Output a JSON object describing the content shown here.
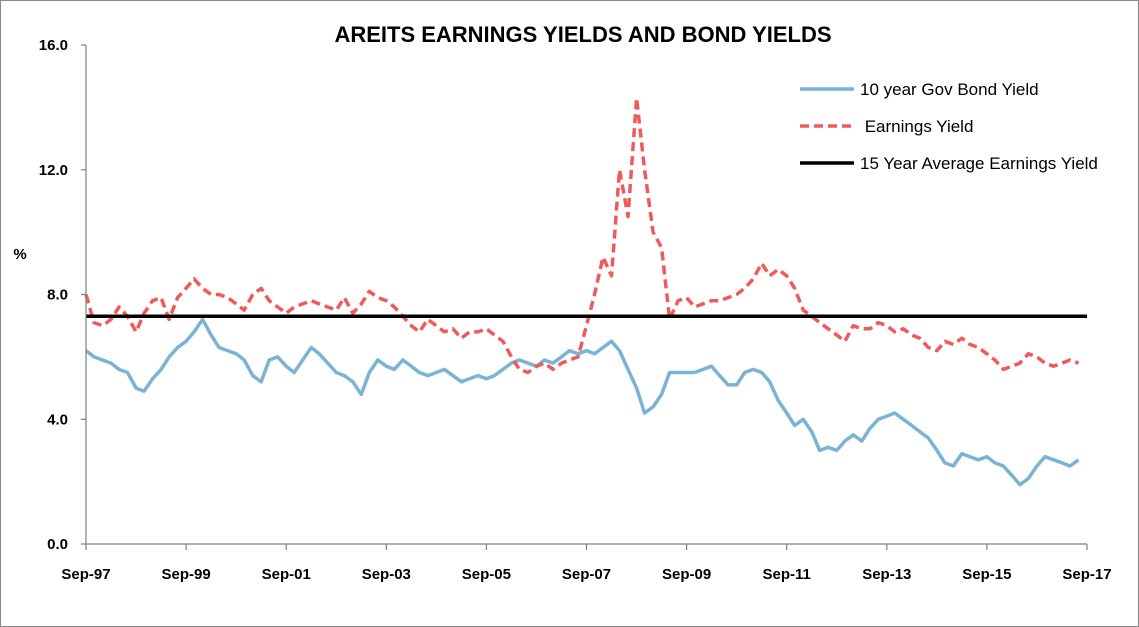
{
  "chart_data": {
    "type": "line",
    "title": "AREITS EARNINGS YIELDS AND BOND YIELDS",
    "ylabel": "%",
    "xlabel": "",
    "ylim": [
      0,
      16
    ],
    "yticks": [
      "0.0",
      "4.0",
      "8.0",
      "12.0",
      "16.0"
    ],
    "ytick_values": [
      0,
      4,
      8,
      12,
      16
    ],
    "x_range": [
      1997.67,
      2017.67
    ],
    "xticks": [
      "Sep-97",
      "Sep-99",
      "Sep-01",
      "Sep-03",
      "Sep-05",
      "Sep-07",
      "Sep-09",
      "Sep-11",
      "Sep-13",
      "Sep-15",
      "Sep-17"
    ],
    "xtick_values": [
      1997.67,
      1999.67,
      2001.67,
      2003.67,
      2005.67,
      2007.67,
      2009.67,
      2011.67,
      2013.67,
      2015.67,
      2017.67
    ],
    "grid": false,
    "legend_position": "top-right",
    "series": [
      {
        "name": "10 year Gov Bond Yield",
        "color": "#7ab3d6",
        "style": "solid",
        "points": [
          [
            1997.67,
            6.2
          ],
          [
            1997.83,
            6.0
          ],
          [
            1998.0,
            5.9
          ],
          [
            1998.17,
            5.8
          ],
          [
            1998.33,
            5.6
          ],
          [
            1998.5,
            5.5
          ],
          [
            1998.67,
            5.0
          ],
          [
            1998.83,
            4.9
          ],
          [
            1999.0,
            5.3
          ],
          [
            1999.17,
            5.6
          ],
          [
            1999.33,
            6.0
          ],
          [
            1999.5,
            6.3
          ],
          [
            1999.67,
            6.5
          ],
          [
            1999.83,
            6.8
          ],
          [
            2000.0,
            7.2
          ],
          [
            2000.17,
            6.7
          ],
          [
            2000.33,
            6.3
          ],
          [
            2000.5,
            6.2
          ],
          [
            2000.67,
            6.1
          ],
          [
            2000.83,
            5.9
          ],
          [
            2001.0,
            5.4
          ],
          [
            2001.17,
            5.2
          ],
          [
            2001.33,
            5.9
          ],
          [
            2001.5,
            6.0
          ],
          [
            2001.67,
            5.7
          ],
          [
            2001.83,
            5.5
          ],
          [
            2002.0,
            5.9
          ],
          [
            2002.17,
            6.3
          ],
          [
            2002.33,
            6.1
          ],
          [
            2002.5,
            5.8
          ],
          [
            2002.67,
            5.5
          ],
          [
            2002.83,
            5.4
          ],
          [
            2003.0,
            5.2
          ],
          [
            2003.17,
            4.8
          ],
          [
            2003.33,
            5.5
          ],
          [
            2003.5,
            5.9
          ],
          [
            2003.67,
            5.7
          ],
          [
            2003.83,
            5.6
          ],
          [
            2004.0,
            5.9
          ],
          [
            2004.17,
            5.7
          ],
          [
            2004.33,
            5.5
          ],
          [
            2004.5,
            5.4
          ],
          [
            2004.67,
            5.5
          ],
          [
            2004.83,
            5.6
          ],
          [
            2005.0,
            5.4
          ],
          [
            2005.17,
            5.2
          ],
          [
            2005.33,
            5.3
          ],
          [
            2005.5,
            5.4
          ],
          [
            2005.67,
            5.3
          ],
          [
            2005.83,
            5.4
          ],
          [
            2006.0,
            5.6
          ],
          [
            2006.17,
            5.8
          ],
          [
            2006.33,
            5.9
          ],
          [
            2006.5,
            5.8
          ],
          [
            2006.67,
            5.7
          ],
          [
            2006.83,
            5.9
          ],
          [
            2007.0,
            5.8
          ],
          [
            2007.17,
            6.0
          ],
          [
            2007.33,
            6.2
          ],
          [
            2007.5,
            6.1
          ],
          [
            2007.67,
            6.2
          ],
          [
            2007.83,
            6.1
          ],
          [
            2008.0,
            6.3
          ],
          [
            2008.17,
            6.5
          ],
          [
            2008.33,
            6.2
          ],
          [
            2008.5,
            5.6
          ],
          [
            2008.67,
            5.0
          ],
          [
            2008.83,
            4.2
          ],
          [
            2009.0,
            4.4
          ],
          [
            2009.17,
            4.8
          ],
          [
            2009.33,
            5.5
          ],
          [
            2009.5,
            5.5
          ],
          [
            2009.67,
            5.5
          ],
          [
            2009.83,
            5.5
          ],
          [
            2010.0,
            5.6
          ],
          [
            2010.17,
            5.7
          ],
          [
            2010.33,
            5.4
          ],
          [
            2010.5,
            5.1
          ],
          [
            2010.67,
            5.1
          ],
          [
            2010.83,
            5.5
          ],
          [
            2011.0,
            5.6
          ],
          [
            2011.17,
            5.5
          ],
          [
            2011.33,
            5.2
          ],
          [
            2011.5,
            4.6
          ],
          [
            2011.67,
            4.2
          ],
          [
            2011.83,
            3.8
          ],
          [
            2012.0,
            4.0
          ],
          [
            2012.17,
            3.6
          ],
          [
            2012.33,
            3.0
          ],
          [
            2012.5,
            3.1
          ],
          [
            2012.67,
            3.0
          ],
          [
            2012.83,
            3.3
          ],
          [
            2013.0,
            3.5
          ],
          [
            2013.17,
            3.3
          ],
          [
            2013.33,
            3.7
          ],
          [
            2013.5,
            4.0
          ],
          [
            2013.67,
            4.1
          ],
          [
            2013.83,
            4.2
          ],
          [
            2014.0,
            4.0
          ],
          [
            2014.17,
            3.8
          ],
          [
            2014.33,
            3.6
          ],
          [
            2014.5,
            3.4
          ],
          [
            2014.67,
            3.0
          ],
          [
            2014.83,
            2.6
          ],
          [
            2015.0,
            2.5
          ],
          [
            2015.17,
            2.9
          ],
          [
            2015.33,
            2.8
          ],
          [
            2015.5,
            2.7
          ],
          [
            2015.67,
            2.8
          ],
          [
            2015.83,
            2.6
          ],
          [
            2016.0,
            2.5
          ],
          [
            2016.17,
            2.2
          ],
          [
            2016.33,
            1.9
          ],
          [
            2016.5,
            2.1
          ],
          [
            2016.67,
            2.5
          ],
          [
            2016.83,
            2.8
          ],
          [
            2017.0,
            2.7
          ],
          [
            2017.17,
            2.6
          ],
          [
            2017.33,
            2.5
          ],
          [
            2017.5,
            2.7
          ]
        ]
      },
      {
        "name": " Earnings Yield",
        "color": "#f05a5a",
        "style": "dashed",
        "points": [
          [
            1997.67,
            8.0
          ],
          [
            1997.83,
            7.1
          ],
          [
            1998.0,
            7.0
          ],
          [
            1998.17,
            7.2
          ],
          [
            1998.33,
            7.6
          ],
          [
            1998.5,
            7.3
          ],
          [
            1998.67,
            6.8
          ],
          [
            1998.83,
            7.4
          ],
          [
            1999.0,
            7.8
          ],
          [
            1999.17,
            7.9
          ],
          [
            1999.33,
            7.2
          ],
          [
            1999.5,
            7.9
          ],
          [
            1999.67,
            8.2
          ],
          [
            1999.83,
            8.5
          ],
          [
            2000.0,
            8.2
          ],
          [
            2000.17,
            8.0
          ],
          [
            2000.33,
            8.0
          ],
          [
            2000.5,
            7.9
          ],
          [
            2000.67,
            7.7
          ],
          [
            2000.83,
            7.5
          ],
          [
            2001.0,
            8.0
          ],
          [
            2001.17,
            8.2
          ],
          [
            2001.33,
            7.8
          ],
          [
            2001.5,
            7.6
          ],
          [
            2001.67,
            7.4
          ],
          [
            2001.83,
            7.6
          ],
          [
            2002.0,
            7.7
          ],
          [
            2002.17,
            7.8
          ],
          [
            2002.33,
            7.7
          ],
          [
            2002.5,
            7.6
          ],
          [
            2002.67,
            7.5
          ],
          [
            2002.83,
            7.9
          ],
          [
            2003.0,
            7.4
          ],
          [
            2003.17,
            7.7
          ],
          [
            2003.33,
            8.1
          ],
          [
            2003.5,
            7.9
          ],
          [
            2003.67,
            7.8
          ],
          [
            2003.83,
            7.6
          ],
          [
            2004.0,
            7.3
          ],
          [
            2004.17,
            7.0
          ],
          [
            2004.33,
            6.8
          ],
          [
            2004.5,
            7.2
          ],
          [
            2004.67,
            7.0
          ],
          [
            2004.83,
            6.8
          ],
          [
            2005.0,
            6.9
          ],
          [
            2005.17,
            6.6
          ],
          [
            2005.33,
            6.8
          ],
          [
            2005.5,
            6.8
          ],
          [
            2005.67,
            6.9
          ],
          [
            2005.83,
            6.7
          ],
          [
            2006.0,
            6.5
          ],
          [
            2006.17,
            6.0
          ],
          [
            2006.33,
            5.6
          ],
          [
            2006.5,
            5.5
          ],
          [
            2006.67,
            5.7
          ],
          [
            2006.83,
            5.8
          ],
          [
            2007.0,
            5.6
          ],
          [
            2007.17,
            5.8
          ],
          [
            2007.33,
            5.9
          ],
          [
            2007.5,
            6.0
          ],
          [
            2007.67,
            7.0
          ],
          [
            2007.83,
            8.0
          ],
          [
            2008.0,
            9.2
          ],
          [
            2008.17,
            8.6
          ],
          [
            2008.33,
            12.0
          ],
          [
            2008.5,
            10.5
          ],
          [
            2008.67,
            14.3
          ],
          [
            2008.83,
            12.0
          ],
          [
            2009.0,
            10.0
          ],
          [
            2009.17,
            9.5
          ],
          [
            2009.33,
            7.2
          ],
          [
            2009.5,
            7.8
          ],
          [
            2009.67,
            7.9
          ],
          [
            2009.83,
            7.6
          ],
          [
            2010.0,
            7.7
          ],
          [
            2010.17,
            7.8
          ],
          [
            2010.33,
            7.8
          ],
          [
            2010.5,
            7.9
          ],
          [
            2010.67,
            8.0
          ],
          [
            2010.83,
            8.2
          ],
          [
            2011.0,
            8.5
          ],
          [
            2011.17,
            9.0
          ],
          [
            2011.33,
            8.6
          ],
          [
            2011.5,
            8.8
          ],
          [
            2011.67,
            8.6
          ],
          [
            2011.83,
            8.2
          ],
          [
            2012.0,
            7.5
          ],
          [
            2012.17,
            7.3
          ],
          [
            2012.33,
            7.1
          ],
          [
            2012.5,
            6.9
          ],
          [
            2012.67,
            6.7
          ],
          [
            2012.83,
            6.5
          ],
          [
            2013.0,
            7.0
          ],
          [
            2013.17,
            6.9
          ],
          [
            2013.33,
            6.9
          ],
          [
            2013.5,
            7.1
          ],
          [
            2013.67,
            7.0
          ],
          [
            2013.83,
            6.8
          ],
          [
            2014.0,
            6.9
          ],
          [
            2014.17,
            6.7
          ],
          [
            2014.33,
            6.6
          ],
          [
            2014.5,
            6.3
          ],
          [
            2014.67,
            6.2
          ],
          [
            2014.83,
            6.5
          ],
          [
            2015.0,
            6.4
          ],
          [
            2015.17,
            6.6
          ],
          [
            2015.33,
            6.4
          ],
          [
            2015.5,
            6.3
          ],
          [
            2015.67,
            6.1
          ],
          [
            2015.83,
            5.9
          ],
          [
            2016.0,
            5.6
          ],
          [
            2016.17,
            5.7
          ],
          [
            2016.33,
            5.8
          ],
          [
            2016.5,
            6.1
          ],
          [
            2016.67,
            6.0
          ],
          [
            2016.83,
            5.8
          ],
          [
            2017.0,
            5.7
          ],
          [
            2017.17,
            5.8
          ],
          [
            2017.33,
            5.9
          ],
          [
            2017.5,
            5.8
          ]
        ]
      },
      {
        "name": "15 Year Average Earnings Yield",
        "color": "#000000",
        "style": "solid",
        "points": [
          [
            1997.67,
            7.3
          ],
          [
            2017.67,
            7.3
          ]
        ]
      }
    ]
  }
}
